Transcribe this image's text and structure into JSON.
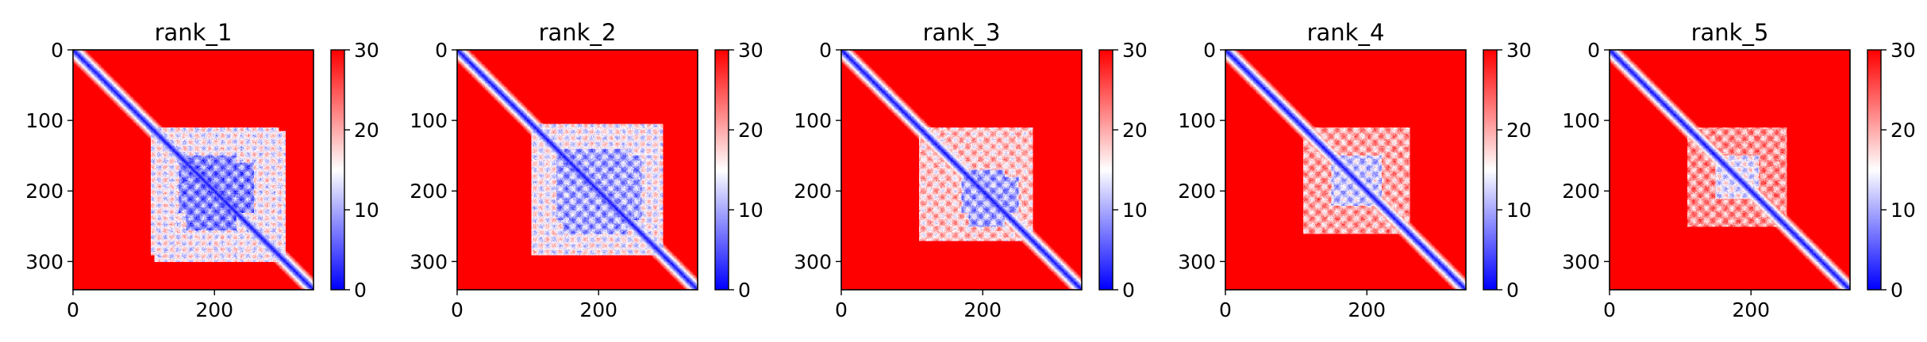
{
  "figure": {
    "colors": {
      "low": "#0000ff",
      "mid": "#ffffff",
      "high": "#ff0000",
      "axes": "#000000"
    }
  },
  "chart_data": [
    {
      "type": "heatmap",
      "title": "rank_1",
      "xlabel": "",
      "ylabel": "",
      "x_ticks": [
        0,
        200
      ],
      "y_ticks": [
        0,
        100,
        200,
        300
      ],
      "xlim": [
        0,
        340
      ],
      "ylim": [
        340,
        0
      ],
      "matrix_size": 340,
      "colorbar": {
        "range": [
          0,
          30
        ],
        "ticks": [
          0,
          10,
          20,
          30
        ],
        "colormap": "bwr"
      },
      "features": {
        "diagonal": true,
        "blocks": [
          {
            "x_range": [
              150,
              255
            ],
            "y_range": [
              160,
              230
            ],
            "level": 8
          },
          {
            "x_range": [
              115,
              290
            ],
            "y_range": [
              110,
              300
            ],
            "level": 15
          }
        ]
      }
    },
    {
      "type": "heatmap",
      "title": "rank_2",
      "xlabel": "",
      "ylabel": "",
      "x_ticks": [
        0,
        200
      ],
      "y_ticks": [
        0,
        100,
        200,
        300
      ],
      "xlim": [
        0,
        340
      ],
      "ylim": [
        340,
        0
      ],
      "matrix_size": 340,
      "colorbar": {
        "range": [
          0,
          30
        ],
        "ticks": [
          0,
          10,
          20,
          30
        ],
        "colormap": "bwr"
      },
      "features": {
        "diagonal": true,
        "blocks": [
          {
            "x_range": [
              140,
              260
            ],
            "y_range": [
              150,
              240
            ],
            "level": 10
          },
          {
            "x_range": [
              105,
              285
            ],
            "y_range": [
              110,
              290
            ],
            "level": 15
          }
        ]
      }
    },
    {
      "type": "heatmap",
      "title": "rank_3",
      "xlabel": "",
      "ylabel": "",
      "x_ticks": [
        0,
        200
      ],
      "y_ticks": [
        0,
        100,
        200,
        300
      ],
      "xlim": [
        0,
        340
      ],
      "ylim": [
        340,
        0
      ],
      "matrix_size": 340,
      "colorbar": {
        "range": [
          0,
          30
        ],
        "ticks": [
          0,
          10,
          20,
          30
        ],
        "colormap": "bwr"
      },
      "features": {
        "diagonal": true,
        "blocks": [
          {
            "x_range": [
              170,
              250
            ],
            "y_range": [
              180,
              230
            ],
            "level": 10
          },
          {
            "x_range": [
              110,
              260
            ],
            "y_range": [
              110,
              270
            ],
            "level": 18
          }
        ]
      }
    },
    {
      "type": "heatmap",
      "title": "rank_4",
      "xlabel": "",
      "ylabel": "",
      "x_ticks": [
        0,
        200
      ],
      "y_ticks": [
        0,
        100,
        200,
        300
      ],
      "xlim": [
        0,
        340
      ],
      "ylim": [
        340,
        0
      ],
      "matrix_size": 340,
      "colorbar": {
        "range": [
          0,
          30
        ],
        "ticks": [
          0,
          10,
          20,
          30
        ],
        "colormap": "bwr"
      },
      "features": {
        "diagonal": true,
        "blocks": [
          {
            "x_range": [
              150,
              210
            ],
            "y_range": [
              150,
              220
            ],
            "level": 12
          },
          {
            "x_range": [
              110,
              260
            ],
            "y_range": [
              110,
              260
            ],
            "level": 20
          }
        ]
      }
    },
    {
      "type": "heatmap",
      "title": "rank_5",
      "xlabel": "",
      "ylabel": "",
      "x_ticks": [
        0,
        200
      ],
      "y_ticks": [
        0,
        100,
        200,
        300
      ],
      "xlim": [
        0,
        340
      ],
      "ylim": [
        340,
        0
      ],
      "matrix_size": 340,
      "colorbar": {
        "range": [
          0,
          30
        ],
        "ticks": [
          0,
          10,
          20,
          30
        ],
        "colormap": "bwr"
      },
      "features": {
        "diagonal": true,
        "blocks": [
          {
            "x_range": [
              150,
              210
            ],
            "y_range": [
              150,
              210
            ],
            "level": 14
          },
          {
            "x_range": [
              110,
              250
            ],
            "y_range": [
              110,
              250
            ],
            "level": 21
          }
        ]
      }
    }
  ]
}
